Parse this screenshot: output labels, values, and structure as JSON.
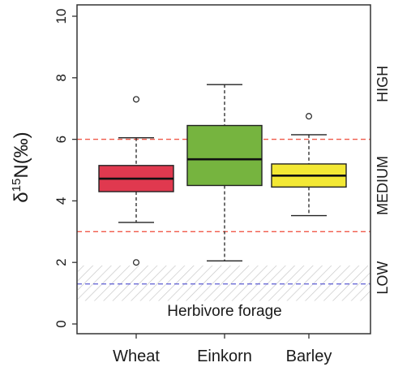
{
  "chart_data": {
    "type": "box",
    "ylabel": "δ15N(‰)",
    "ylabel_main": "δ",
    "ylabel_sup": "15",
    "ylabel_rest": "N(‰)",
    "ylim": [
      0,
      10
    ],
    "yticks": [
      0,
      2,
      4,
      6,
      8,
      10
    ],
    "ytick_labels": [
      "0",
      "2",
      "4",
      "6",
      "8",
      "10"
    ],
    "categories": [
      "Wheat",
      "Einkorn",
      "Barley"
    ],
    "boxes": [
      {
        "category": "Wheat",
        "color": "#e0394f",
        "whisker_low": 3.3,
        "q1": 4.3,
        "median": 4.72,
        "q3": 5.15,
        "whisker_high": 6.05,
        "outliers": [
          7.3,
          2.0
        ]
      },
      {
        "category": "Einkorn",
        "color": "#76b43f",
        "whisker_low": 2.05,
        "q1": 4.5,
        "median": 5.35,
        "q3": 6.45,
        "whisker_high": 7.78,
        "outliers": []
      },
      {
        "category": "Barley",
        "color": "#f3e834",
        "whisker_low": 3.52,
        "q1": 4.45,
        "median": 4.82,
        "q3": 5.2,
        "whisker_high": 6.15,
        "outliers": [
          6.75
        ]
      }
    ],
    "reference_lines": [
      {
        "y": 6.0,
        "color": "#f05a4a",
        "style": "dashed"
      },
      {
        "y": 3.0,
        "color": "#f05a4a",
        "style": "dashed"
      },
      {
        "y": 1.3,
        "color": "#6b6bd6",
        "style": "dashed"
      }
    ],
    "shaded_band": {
      "y_low": 0.75,
      "y_high": 1.9,
      "pattern": "diagonal-hatch",
      "label": "Herbivore forage"
    },
    "right_labels": [
      {
        "text": "HIGH",
        "y_center": 7.8
      },
      {
        "text": "MEDIUM",
        "y_center": 4.5
      },
      {
        "text": "LOW",
        "y_center": 1.5
      }
    ]
  }
}
